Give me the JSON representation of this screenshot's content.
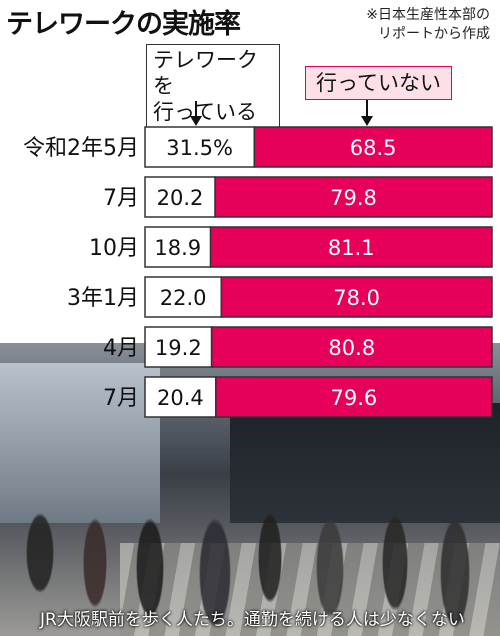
{
  "title": "テレワークの実施率",
  "source_lines": [
    "※日本生産性本部の",
    "リポートから作成"
  ],
  "legend": {
    "left_lines": [
      "テレワークを",
      "行っている"
    ],
    "right": "行っていない"
  },
  "colors": {
    "teleworking": "#ffffff",
    "not_teleworking": "#e6005a",
    "border": "#333333"
  },
  "chart_data": {
    "type": "bar",
    "stacked": true,
    "orientation": "horizontal",
    "categories": [
      "令和2年5月",
      "7月",
      "10月",
      "3年1月",
      "4月",
      "7月"
    ],
    "series": [
      {
        "name": "テレワークを行っている",
        "values": [
          31.5,
          20.2,
          18.9,
          22.0,
          19.2,
          20.4
        ],
        "labels": [
          "31.5%",
          "20.2",
          "18.9",
          "22.0",
          "19.2",
          "20.4"
        ]
      },
      {
        "name": "行っていない",
        "values": [
          68.5,
          79.8,
          81.1,
          78.0,
          80.8,
          79.6
        ],
        "labels": [
          "68.5",
          "79.8",
          "81.1",
          "78.0",
          "80.8",
          "79.6"
        ]
      }
    ],
    "unit": "%",
    "xlim": [
      0,
      100
    ],
    "grid": false,
    "legend_position": "top"
  },
  "photo": {
    "caption": "JR大阪駅前を歩く人たち。通勤を続ける人は少なくない"
  }
}
